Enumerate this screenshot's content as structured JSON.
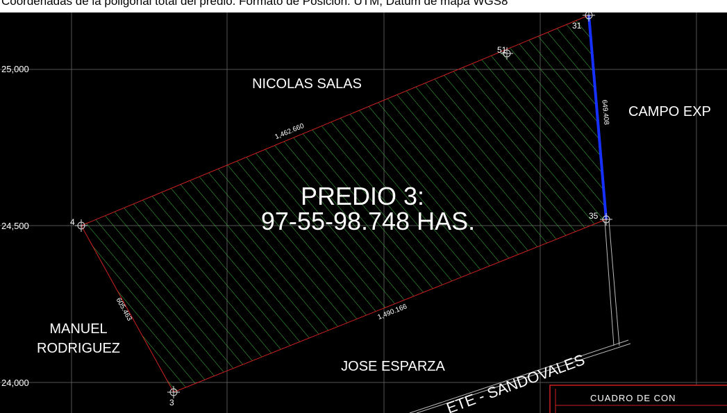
{
  "caption": "Coordenadas de la poligonal total del predio. Formato de Posición: UTM, Datum de mapa WGS8",
  "axis_labels": [
    "25,000",
    "24,500",
    "24,000"
  ],
  "neighbors": {
    "north": "NICOLAS SALAS",
    "east": "CAMPO EXP",
    "west_1": "MANUEL",
    "west_2": "RODRIGUEZ",
    "south": "JOSE ESPARZA"
  },
  "road": "ETE - SANDOVALES",
  "parcel": {
    "title": "PREDIO 3:",
    "area": "97-55-98.748 HAS."
  },
  "distances": {
    "north": "1,462.660",
    "east": "649.408",
    "south": "1,490.166",
    "west": "605.463"
  },
  "vertices": [
    "4",
    "51",
    "31",
    "35",
    "3"
  ],
  "table_title": "CUADRO DE CON"
}
